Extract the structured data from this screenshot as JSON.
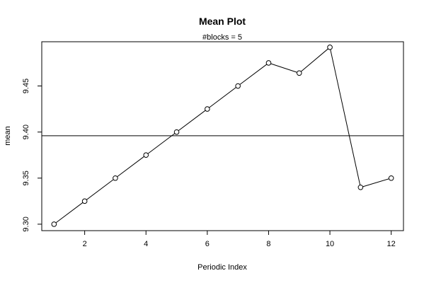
{
  "chart_data": {
    "type": "line",
    "title": "Mean Plot",
    "subtitle": "#blocks =  5",
    "xlabel": "Periodic Index",
    "ylabel": "mean",
    "xlim": [
      0.6,
      12.4
    ],
    "ylim": [
      9.293,
      9.498
    ],
    "x_ticks": [
      2,
      4,
      6,
      8,
      10,
      12
    ],
    "y_ticks": [
      9.3,
      9.35,
      9.4,
      9.45
    ],
    "y_tick_labels": [
      "9.30",
      "9.35",
      "9.40",
      "9.45"
    ],
    "x": [
      1,
      2,
      3,
      4,
      5,
      6,
      7,
      8,
      9,
      10,
      11,
      12
    ],
    "values": [
      9.3,
      9.325,
      9.35,
      9.375,
      9.4,
      9.425,
      9.45,
      9.475,
      9.464,
      9.492,
      9.34,
      9.35
    ],
    "reference_line": 9.396,
    "markers": "open-circle",
    "grid": false,
    "line_color": "#000000"
  }
}
